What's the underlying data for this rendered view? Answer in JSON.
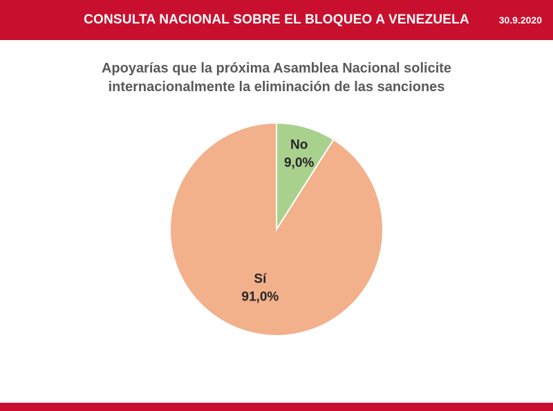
{
  "header": {
    "title": "CONSULTA NACIONAL SOBRE EL BLOQUEO A VENEZUELA",
    "date": "30.9.2020"
  },
  "chart_data": {
    "type": "pie",
    "title": "Apoyarías que la próxima Asamblea Nacional solicite internacionalmente la eliminación de las sanciones",
    "title_lines": [
      "Apoyarías que la próxima Asamblea Nacional solicite",
      "internacionalmente la eliminación de las sanciones"
    ],
    "slices": [
      {
        "label": "Sí",
        "value": 91.0,
        "display": "91,0%",
        "color": "#f2b08b"
      },
      {
        "label": "No",
        "value": 9.0,
        "display": "9,0%",
        "color": "#a9d18e"
      }
    ],
    "start": "12 o'clock",
    "direction": "counterclockwise",
    "colors": {
      "edge": "#ffffff",
      "label_text": "#262626"
    }
  },
  "colors": {
    "brand_red": "#c8102e",
    "title_gray": "#595959"
  }
}
